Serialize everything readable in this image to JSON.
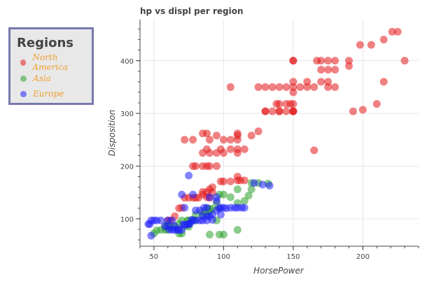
{
  "chart_data": {
    "type": "scatter",
    "title": "hp vs displ per region",
    "xlabel": "HorsePower",
    "ylabel": "Disposition",
    "xlim": [
      40,
      240
    ],
    "ylim": [
      48,
      478
    ],
    "xticks": [
      50,
      100,
      150,
      200
    ],
    "yticks": [
      100,
      200,
      300,
      400
    ],
    "grid": true,
    "legend": {
      "title": "Regions",
      "placement": "outside-left"
    },
    "series": [
      {
        "name": "North America",
        "color": "#e41a1c",
        "points": [
          [
            225,
            455
          ],
          [
            221,
            455
          ],
          [
            215,
            440
          ],
          [
            206,
            430
          ],
          [
            198,
            430
          ],
          [
            230,
            400
          ],
          [
            190,
            400
          ],
          [
            190,
            390
          ],
          [
            180,
            400
          ],
          [
            175,
            400
          ],
          [
            170,
            400
          ],
          [
            167,
            400
          ],
          [
            150,
            400
          ],
          [
            150,
            400
          ],
          [
            180,
            383
          ],
          [
            175,
            383
          ],
          [
            170,
            383
          ],
          [
            160,
            360
          ],
          [
            170,
            360
          ],
          [
            175,
            360
          ],
          [
            215,
            360
          ],
          [
            150,
            360
          ],
          [
            150,
            350
          ],
          [
            140,
            350
          ],
          [
            145,
            350
          ],
          [
            155,
            350
          ],
          [
            160,
            350
          ],
          [
            165,
            350
          ],
          [
            175,
            350
          ],
          [
            180,
            350
          ],
          [
            130,
            350
          ],
          [
            135,
            350
          ],
          [
            125,
            350
          ],
          [
            105,
            350
          ],
          [
            150,
            340
          ],
          [
            148,
            318
          ],
          [
            145,
            318
          ],
          [
            140,
            318
          ],
          [
            138,
            318
          ],
          [
            150,
            304
          ],
          [
            145,
            304
          ],
          [
            140,
            304
          ],
          [
            135,
            304
          ],
          [
            130,
            304
          ],
          [
            150,
            304
          ],
          [
            210,
            318
          ],
          [
            200,
            307
          ],
          [
            193,
            304
          ],
          [
            165,
            230
          ],
          [
            150,
            318
          ],
          [
            150,
            304
          ],
          [
            140,
            304
          ],
          [
            130,
            304
          ],
          [
            125,
            266
          ],
          [
            120,
            258
          ],
          [
            115,
            232
          ],
          [
            110,
            258
          ],
          [
            110,
            262
          ],
          [
            110,
            250
          ],
          [
            105,
            250
          ],
          [
            100,
            250
          ],
          [
            95,
            258
          ],
          [
            90,
            250
          ],
          [
            88,
            262
          ],
          [
            85,
            262
          ],
          [
            78,
            250
          ],
          [
            72,
            250
          ],
          [
            110,
            232
          ],
          [
            105,
            232
          ],
          [
            100,
            225
          ],
          [
            98,
            232
          ],
          [
            95,
            225
          ],
          [
            90,
            225
          ],
          [
            88,
            232
          ],
          [
            85,
            225
          ],
          [
            110,
            225
          ],
          [
            95,
            200
          ],
          [
            90,
            200
          ],
          [
            88,
            200
          ],
          [
            85,
            200
          ],
          [
            80,
            200
          ],
          [
            78,
            200
          ],
          [
            110,
            180
          ],
          [
            105,
            171
          ],
          [
            100,
            171
          ],
          [
            98,
            171
          ],
          [
            92,
            160
          ],
          [
            90,
            156
          ],
          [
            88,
            151
          ],
          [
            85,
            151
          ],
          [
            82,
            140
          ],
          [
            80,
            140
          ],
          [
            78,
            140
          ],
          [
            75,
            140
          ],
          [
            72,
            140
          ],
          [
            70,
            121
          ],
          [
            68,
            120
          ],
          [
            65,
            105
          ],
          [
            62,
            97
          ],
          [
            60,
            97
          ],
          [
            90,
            140
          ],
          [
            88,
            141
          ],
          [
            85,
            146
          ],
          [
            92,
            150
          ],
          [
            110,
            173
          ],
          [
            112,
            173
          ],
          [
            115,
            173
          ]
        ]
      },
      {
        "name": "Asia",
        "color": "#2ca02c",
        "points": [
          [
            132,
            167
          ],
          [
            120,
            156
          ],
          [
            118,
            144
          ],
          [
            110,
            130
          ],
          [
            100,
            146
          ],
          [
            97,
            146
          ],
          [
            95,
            130
          ],
          [
            92,
            119
          ],
          [
            90,
            119
          ],
          [
            88,
            120
          ],
          [
            85,
            113
          ],
          [
            80,
            108
          ],
          [
            75,
            97
          ],
          [
            70,
            97
          ],
          [
            68,
            91
          ],
          [
            65,
            85
          ],
          [
            62,
            85
          ],
          [
            60,
            79
          ],
          [
            58,
            79
          ],
          [
            55,
            79
          ],
          [
            52,
            78
          ],
          [
            50,
            72
          ],
          [
            97,
            120
          ],
          [
            95,
            97
          ],
          [
            90,
            113
          ],
          [
            88,
            107
          ],
          [
            85,
            107
          ],
          [
            80,
            97
          ],
          [
            78,
            98
          ],
          [
            75,
            90
          ],
          [
            72,
            86
          ],
          [
            70,
            72
          ],
          [
            68,
            72
          ],
          [
            67,
            80
          ],
          [
            60,
            89
          ],
          [
            58,
            86
          ],
          [
            110,
            79
          ],
          [
            100,
            70
          ],
          [
            97,
            70
          ],
          [
            90,
            70
          ],
          [
            75,
            85
          ],
          [
            74,
            97
          ],
          [
            110,
            156
          ],
          [
            115,
            134
          ],
          [
            120,
            168
          ],
          [
            125,
            168
          ],
          [
            105,
            141
          ]
        ]
      },
      {
        "name": "Europe",
        "color": "#1f1fff",
        "points": [
          [
            133,
            163
          ],
          [
            128,
            165
          ],
          [
            122,
            168
          ],
          [
            115,
            121
          ],
          [
            113,
            121
          ],
          [
            110,
            121
          ],
          [
            108,
            121
          ],
          [
            102,
            120
          ],
          [
            98,
            121
          ],
          [
            97,
            120
          ],
          [
            95,
            116
          ],
          [
            92,
            108
          ],
          [
            90,
            105
          ],
          [
            88,
            97
          ],
          [
            85,
            97
          ],
          [
            83,
            97
          ],
          [
            80,
            97
          ],
          [
            78,
            97
          ],
          [
            76,
            91
          ],
          [
            75,
            90
          ],
          [
            74,
            89
          ],
          [
            72,
            89
          ],
          [
            71,
            89
          ],
          [
            70,
            79
          ],
          [
            68,
            79
          ],
          [
            67,
            79
          ],
          [
            65,
            79
          ],
          [
            63,
            79
          ],
          [
            61,
            80
          ],
          [
            60,
            86
          ],
          [
            58,
            86
          ],
          [
            55,
            97
          ],
          [
            52,
            97
          ],
          [
            50,
            97
          ],
          [
            48,
            97
          ],
          [
            47,
            90
          ],
          [
            46,
            90
          ],
          [
            48,
            68
          ],
          [
            70,
            146
          ],
          [
            78,
            146
          ],
          [
            72,
            121
          ],
          [
            80,
            116
          ],
          [
            83,
            116
          ],
          [
            86,
            121
          ],
          [
            88,
            121
          ],
          [
            90,
            141
          ],
          [
            95,
            141
          ],
          [
            100,
            121
          ],
          [
            105,
            121
          ],
          [
            95,
            134
          ],
          [
            98,
            108
          ],
          [
            92,
            98
          ],
          [
            77,
            98
          ],
          [
            65,
            86
          ],
          [
            63,
            97
          ],
          [
            60,
            97
          ],
          [
            75,
            182
          ],
          [
            85,
            105
          ],
          [
            88,
            105
          ]
        ]
      }
    ]
  }
}
